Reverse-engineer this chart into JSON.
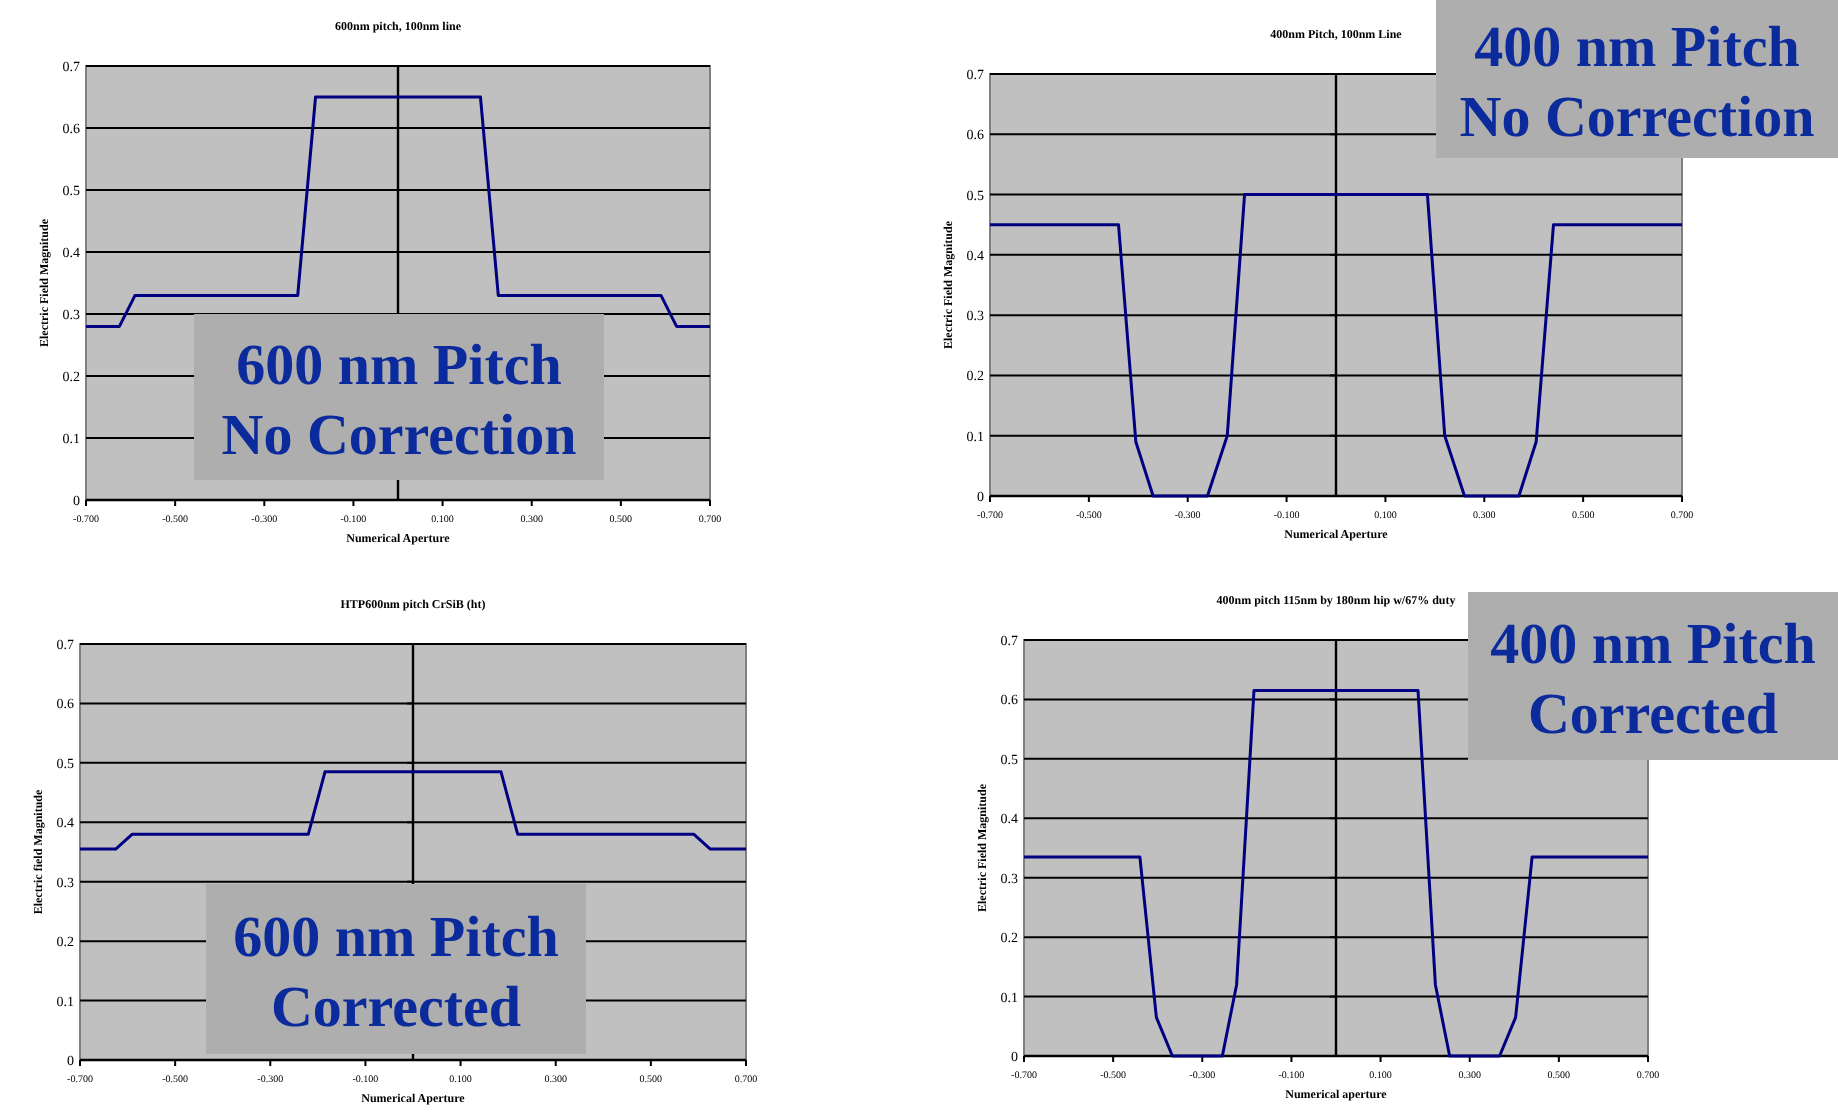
{
  "chart_data": [
    {
      "type": "line",
      "title": "600nm pitch, 100nm line",
      "xlabel": "Numerical Aperture",
      "ylabel": "Electric Field Magnitude",
      "xlim": [
        -0.7,
        0.7
      ],
      "ylim": [
        0,
        0.7
      ],
      "xticks": [
        {
          "value": -0.7,
          "label": "-0.700"
        },
        {
          "value": -0.5,
          "label": "-0.500"
        },
        {
          "value": -0.3,
          "label": "-0.300"
        },
        {
          "value": -0.1,
          "label": "-0.100"
        },
        {
          "value": 0.1,
          "label": "0.100"
        },
        {
          "value": 0.3,
          "label": "0.300"
        },
        {
          "value": 0.5,
          "label": "0.500"
        },
        {
          "value": 0.7,
          "label": "0.700"
        }
      ],
      "yticks": [
        0,
        0.1,
        0.2,
        0.3,
        0.4,
        0.5,
        0.6,
        0.7
      ],
      "grid": "y",
      "annotations": [
        "600 nm Pitch\nNo Correction"
      ],
      "series": [
        {
          "color": "#000080",
          "x": [
            -0.7,
            -0.625,
            -0.59,
            -0.225,
            -0.185,
            0.185,
            0.225,
            0.59,
            0.625,
            0.7
          ],
          "values": [
            0.28,
            0.28,
            0.33,
            0.33,
            0.65,
            0.65,
            0.33,
            0.33,
            0.28,
            0.28
          ]
        }
      ]
    },
    {
      "type": "line",
      "title": "400nm Pitch, 100nm Line",
      "xlabel": "Numerical Aperture",
      "ylabel": "Electric Field Magnitude",
      "xlim": [
        -0.7,
        0.7
      ],
      "ylim": [
        0,
        0.7
      ],
      "xticks": [
        {
          "value": -0.7,
          "label": "-0.700"
        },
        {
          "value": -0.5,
          "label": "-0.500"
        },
        {
          "value": -0.3,
          "label": "-0.300"
        },
        {
          "value": -0.1,
          "label": "-0.100"
        },
        {
          "value": 0.1,
          "label": "0.100"
        },
        {
          "value": 0.3,
          "label": "0.300"
        },
        {
          "value": 0.5,
          "label": "0.500"
        },
        {
          "value": 0.7,
          "label": "0.700"
        }
      ],
      "yticks": [
        0,
        0.1,
        0.2,
        0.3,
        0.4,
        0.5,
        0.6,
        0.7
      ],
      "grid": "y",
      "annotations": [
        "400 nm Pitch\nNo Correction"
      ],
      "series": [
        {
          "color": "#000080",
          "x": [
            -0.7,
            -0.44,
            -0.405,
            -0.37,
            -0.26,
            -0.22,
            -0.185,
            0.185,
            0.22,
            0.26,
            0.37,
            0.405,
            0.44,
            0.7
          ],
          "values": [
            0.45,
            0.45,
            0.09,
            0,
            0,
            0.1,
            0.5,
            0.5,
            0.1,
            0,
            0,
            0.09,
            0.45,
            0.45
          ]
        }
      ]
    },
    {
      "type": "line",
      "title": "HTP600nm pitch CrSiB (ht)",
      "xlabel": "Numerical Aperture",
      "ylabel": "Electric field Magnitude",
      "xlim": [
        -0.7,
        0.7
      ],
      "ylim": [
        0,
        0.7
      ],
      "xticks": [
        {
          "value": -0.7,
          "label": "-0.700"
        },
        {
          "value": -0.5,
          "label": "-0.500"
        },
        {
          "value": -0.3,
          "label": "-0.300"
        },
        {
          "value": -0.1,
          "label": "-0.100"
        },
        {
          "value": 0.1,
          "label": "0.100"
        },
        {
          "value": 0.3,
          "label": "0.300"
        },
        {
          "value": 0.5,
          "label": "0.500"
        },
        {
          "value": 0.7,
          "label": "0.700"
        }
      ],
      "yticks": [
        0,
        0.1,
        0.2,
        0.3,
        0.4,
        0.5,
        0.6,
        0.7
      ],
      "grid": "y",
      "annotations": [
        "600 nm Pitch\nCorrected"
      ],
      "series": [
        {
          "color": "#000080",
          "x": [
            -0.7,
            -0.625,
            -0.59,
            -0.22,
            -0.185,
            0.185,
            0.22,
            0.59,
            0.625,
            0.7
          ],
          "values": [
            0.355,
            0.355,
            0.38,
            0.38,
            0.485,
            0.485,
            0.38,
            0.38,
            0.355,
            0.355
          ]
        }
      ]
    },
    {
      "type": "line",
      "title": "400nm pitch 115nm by 180nm hip w/67% duty",
      "xlabel": "Numerical aperture",
      "ylabel": "Electric Field Magnitude",
      "xlim": [
        -0.7,
        0.7
      ],
      "ylim": [
        0,
        0.7
      ],
      "xticks": [
        {
          "value": -0.7,
          "label": "-0.700"
        },
        {
          "value": -0.5,
          "label": "-0.500"
        },
        {
          "value": -0.3,
          "label": "-0.300"
        },
        {
          "value": -0.1,
          "label": "-0.100"
        },
        {
          "value": 0.1,
          "label": "0.100"
        },
        {
          "value": 0.3,
          "label": "0.300"
        },
        {
          "value": 0.5,
          "label": "0.500"
        },
        {
          "value": 0.7,
          "label": "0.700"
        }
      ],
      "yticks": [
        0,
        0.1,
        0.2,
        0.3,
        0.4,
        0.5,
        0.6,
        0.7
      ],
      "grid": "y",
      "annotations": [
        "400 nm Pitch\nCorrected"
      ],
      "series": [
        {
          "color": "#000080",
          "x": [
            -0.7,
            -0.44,
            -0.403,
            -0.367,
            -0.255,
            -0.223,
            -0.184,
            0.184,
            0.223,
            0.255,
            0.367,
            0.403,
            0.44,
            0.7
          ],
          "values": [
            0.335,
            0.335,
            0.065,
            0,
            0,
            0.12,
            0.615,
            0.615,
            0.12,
            0,
            0,
            0.065,
            0.335,
            0.335
          ]
        }
      ]
    }
  ]
}
